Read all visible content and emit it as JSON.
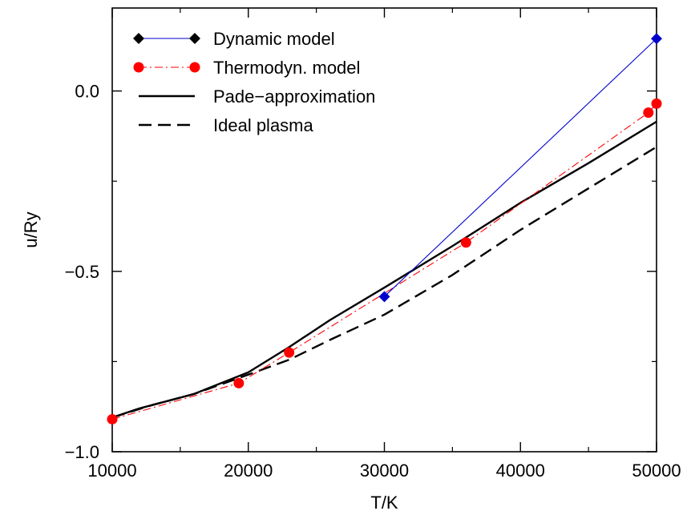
{
  "chart_data": {
    "type": "line",
    "xlabel": "T/K",
    "ylabel": "u/Ry",
    "xlim": [
      10000,
      50000
    ],
    "ylim": [
      -1.0,
      0.23
    ],
    "x_ticks": [
      10000,
      20000,
      30000,
      40000,
      50000
    ],
    "x_tick_labels": [
      "10000",
      "20000",
      "30000",
      "40000",
      "50000"
    ],
    "y_ticks": [
      -1.0,
      -0.5,
      0.0
    ],
    "y_tick_labels": [
      "−1.0",
      "−0.5",
      "0.0"
    ],
    "legend_position": "top-left",
    "series": [
      {
        "name": "Dynamic model",
        "color": "#0000cc",
        "marker": "diamond",
        "line_style": "solid",
        "x": [
          30000,
          50000
        ],
        "y": [
          -0.57,
          0.145
        ]
      },
      {
        "name": "Thermodyn. model",
        "color": "#ff0000",
        "marker": "circle",
        "line_style": "dashdot",
        "x": [
          10000,
          19300,
          23000,
          36000,
          49400,
          50000
        ],
        "y": [
          -0.91,
          -0.81,
          -0.725,
          -0.42,
          -0.06,
          -0.035
        ]
      },
      {
        "name": "Pade−approximation",
        "color": "#000000",
        "marker": "none",
        "line_style": "solid",
        "x": [
          10000,
          12000,
          14000,
          16000,
          18000,
          20000,
          23000,
          26000,
          30000,
          35000,
          40000,
          45000,
          50000
        ],
        "y": [
          -0.905,
          -0.88,
          -0.86,
          -0.84,
          -0.81,
          -0.78,
          -0.71,
          -0.635,
          -0.545,
          -0.43,
          -0.31,
          -0.2,
          -0.085
        ]
      },
      {
        "name": "Ideal plasma",
        "color": "#000000",
        "marker": "none",
        "line_style": "dashed",
        "x": [
          10000,
          13000,
          16000,
          19000,
          23000,
          26000,
          30000,
          35000,
          40000,
          45000,
          50000
        ],
        "y": [
          -0.905,
          -0.87,
          -0.84,
          -0.8,
          -0.745,
          -0.69,
          -0.62,
          -0.51,
          -0.385,
          -0.27,
          -0.155
        ]
      }
    ]
  }
}
